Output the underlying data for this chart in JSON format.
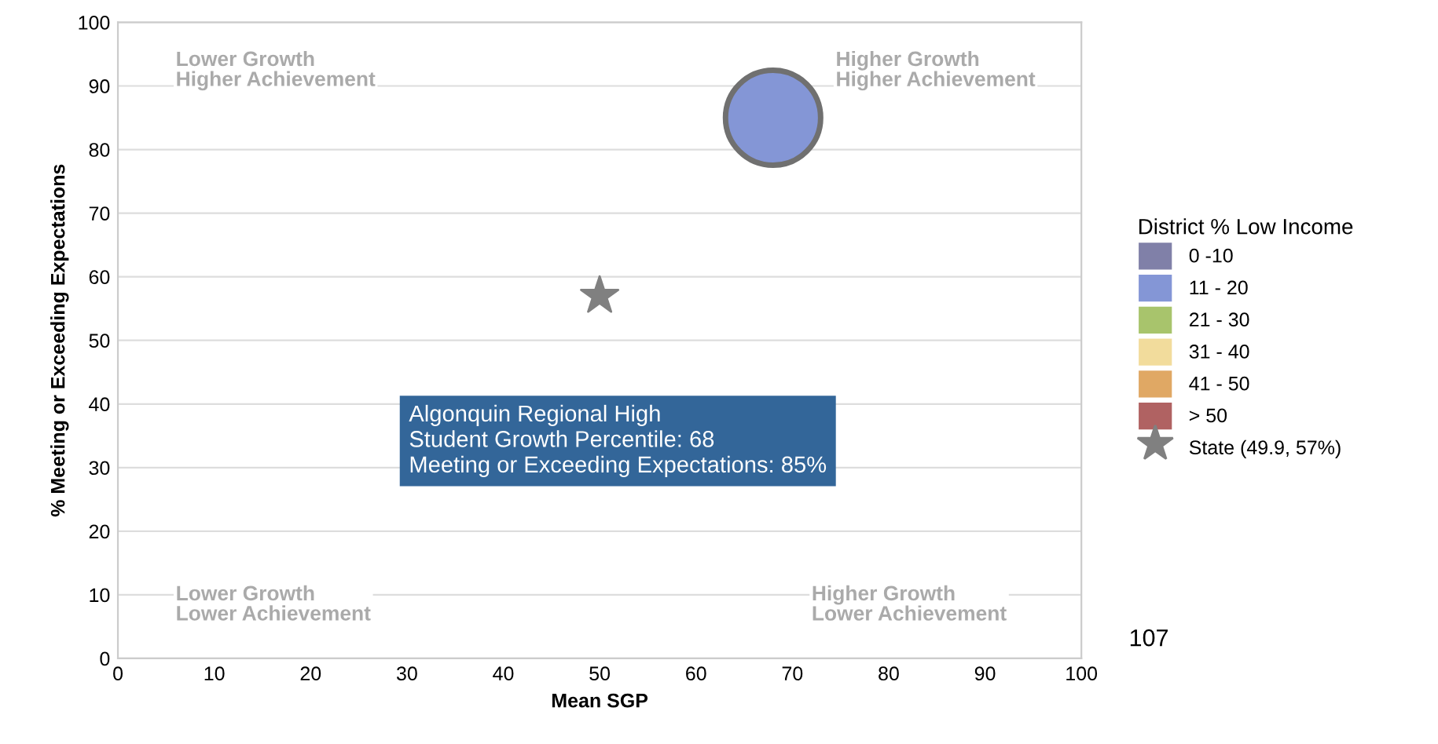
{
  "chart_data": {
    "type": "bubble",
    "xlabel": "Mean SGP",
    "ylabel": "% Meeting or Exceeding Expectations",
    "xlim": [
      0,
      100
    ],
    "ylim": [
      0,
      100
    ],
    "xticks": [
      0,
      10,
      20,
      30,
      40,
      50,
      60,
      70,
      80,
      90,
      100
    ],
    "yticks": [
      0,
      10,
      20,
      30,
      40,
      50,
      60,
      70,
      80,
      90,
      100
    ],
    "grid": "y",
    "legend": "right",
    "legend_title": "District % Low Income",
    "series": [
      {
        "name": "0 -10",
        "color": "#8080a8"
      },
      {
        "name": "11 - 20",
        "color": "#8496d6",
        "x": [
          68
        ],
        "values": [
          85
        ],
        "sizes": [
          1
        ]
      },
      {
        "name": "21 - 30",
        "color": "#a8c46c"
      },
      {
        "name": "31 - 40",
        "color": "#f2dc9c"
      },
      {
        "name": "41 - 50",
        "color": "#e0a864"
      },
      {
        "name": "> 50",
        "color": "#b06262"
      },
      {
        "name": "State (49.9, 57%)",
        "type": "scatter",
        "marker": "star",
        "color": "#808080",
        "x": [
          50
        ],
        "values": [
          57
        ]
      }
    ],
    "annotations": [
      "Lower Growth\nHigher Achievement",
      "Higher Growth\nHigher Achievement",
      "Lower Growth\nLower Achievement",
      "Higher Growth\nLower Achievement",
      "Algonquin Regional High\nStudent Growth Percentile: 68\nMeeting or Exceeding Expectations: 85%",
      "107"
    ]
  }
}
